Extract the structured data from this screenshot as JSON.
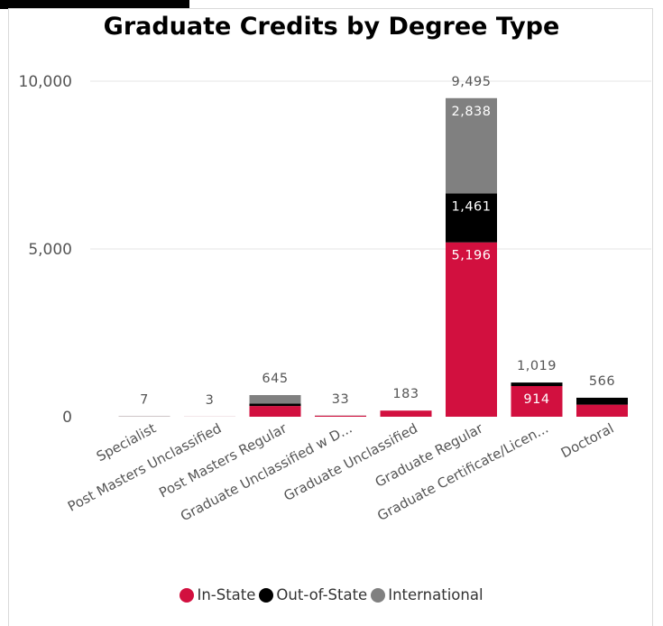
{
  "chart_data": {
    "type": "bar",
    "stacked": true,
    "title": "Graduate Credits by Degree Type",
    "xlabel": "",
    "ylabel": "",
    "ylim": [
      0,
      10000
    ],
    "yticks": [
      "0",
      "5,000",
      "10,000"
    ],
    "yticks_values": [
      0,
      5000,
      10000
    ],
    "grid": true,
    "legend_position": "bottom",
    "categories": [
      "Specialist",
      "Post Masters Unclassified",
      "Post Masters Regular",
      "Graduate Unclassified w D...",
      "Graduate Unclassified",
      "Graduate Regular",
      "Graduate Certificate/Licen...",
      "Doctoral"
    ],
    "series": [
      {
        "name": "In-State",
        "color": "#d2103f",
        "values": [
          2,
          2,
          320,
          30,
          183,
          5196,
          914,
          360
        ],
        "labels": [
          "",
          "",
          "",
          "",
          "",
          "5,196",
          "914",
          ""
        ]
      },
      {
        "name": "Out-of-State",
        "color": "#000000",
        "values": [
          5,
          1,
          75,
          3,
          0,
          1461,
          105,
          206
        ],
        "labels": [
          "",
          "",
          "",
          "",
          "",
          "1,461",
          "",
          ""
        ]
      },
      {
        "name": "International",
        "color": "#808080",
        "values": [
          0,
          0,
          250,
          0,
          0,
          2838,
          0,
          0
        ],
        "labels": [
          "",
          "",
          "",
          "",
          "",
          "2,838",
          "",
          ""
        ]
      }
    ],
    "totals": [
      7,
      3,
      645,
      33,
      183,
      9495,
      1019,
      566
    ],
    "total_labels": [
      "7",
      "3",
      "645",
      "33",
      "183",
      "9,495",
      "1,019",
      "566"
    ]
  }
}
